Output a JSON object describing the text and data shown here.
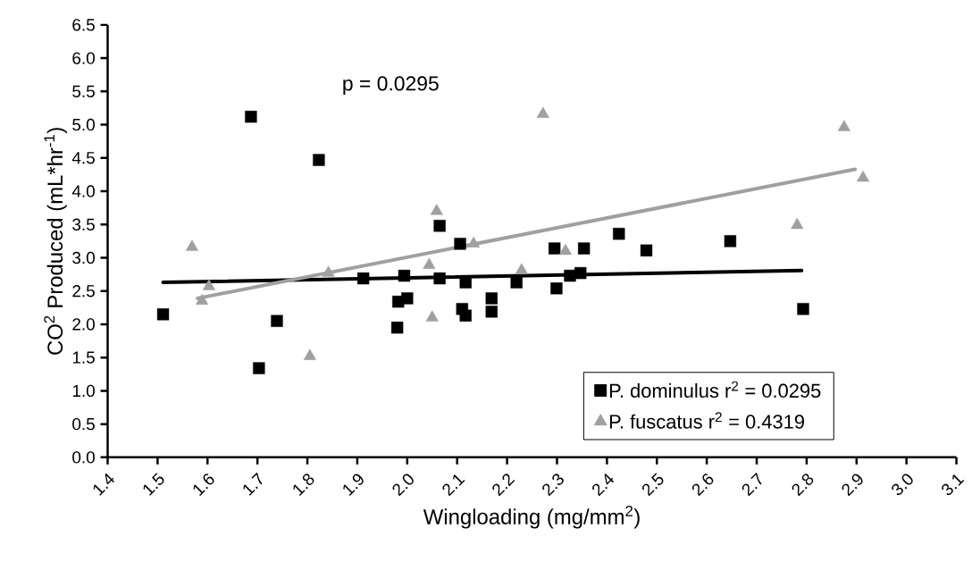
{
  "chart_data": {
    "type": "scatter",
    "xlabel": "Wingloading (mg/mm$^{2}$)",
    "ylabel": "CO$^{2}$ Produced (mL*hr$^{-1}$)",
    "annotations": [
      "p = 0.0295"
    ],
    "xlim": [
      1.4,
      3.1
    ],
    "ylim": [
      0,
      6.5
    ],
    "xticks": [
      {
        "value": 1.4,
        "label": "1.4"
      },
      {
        "value": 1.5,
        "label": "1.5"
      },
      {
        "value": 1.6,
        "label": "1.6"
      },
      {
        "value": 1.7,
        "label": "1.7"
      },
      {
        "value": 1.8,
        "label": "1.8"
      },
      {
        "value": 1.9,
        "label": "1.9"
      },
      {
        "value": 2.0,
        "label": "2.0"
      },
      {
        "value": 2.1,
        "label": "2.1"
      },
      {
        "value": 2.2,
        "label": "2.2"
      },
      {
        "value": 2.3,
        "label": "2.3"
      },
      {
        "value": 2.4,
        "label": "2.4"
      },
      {
        "value": 2.5,
        "label": "2.5"
      },
      {
        "value": 2.6,
        "label": "2.6"
      },
      {
        "value": 2.7,
        "label": "2.7"
      },
      {
        "value": 2.8,
        "label": "2.8"
      },
      {
        "value": 2.9,
        "label": "2.9"
      },
      {
        "value": 3.0,
        "label": "3.0"
      },
      {
        "value": 3.1,
        "label": "3.1"
      }
    ],
    "yticks": [
      {
        "value": 0.0,
        "label": "0.0"
      },
      {
        "value": 0.5,
        "label": "0.5"
      },
      {
        "value": 1.0,
        "label": "1.0"
      },
      {
        "value": 1.5,
        "label": "1.5"
      },
      {
        "value": 2.0,
        "label": "2.0"
      },
      {
        "value": 2.5,
        "label": "2.5"
      },
      {
        "value": 3.0,
        "label": "3.0"
      },
      {
        "value": 3.5,
        "label": "3.5"
      },
      {
        "value": 4.0,
        "label": "4.0"
      },
      {
        "value": 4.5,
        "label": "4.5"
      },
      {
        "value": 5.0,
        "label": "5.0"
      },
      {
        "value": 5.5,
        "label": "5.5"
      },
      {
        "value": 6.0,
        "label": "6.0"
      },
      {
        "value": 6.5,
        "label": "6.5"
      }
    ],
    "legend": "bottom right",
    "series": [
      {
        "name": "P. dominulus r$^{2}$ = 0.0295",
        "marker": "square",
        "color": "#000000",
        "x": [
          1.511,
          1.687,
          1.703,
          1.739,
          1.823,
          1.912,
          1.982,
          2.0,
          1.98,
          1.994,
          2.065,
          2.065,
          2.106,
          2.117,
          2.11,
          2.117,
          2.169,
          2.169,
          2.219,
          2.295,
          2.299,
          2.326,
          2.347,
          2.354,
          2.424,
          2.479,
          2.647,
          2.793
        ],
        "values": [
          2.15,
          5.12,
          1.34,
          2.05,
          4.47,
          2.69,
          2.34,
          2.39,
          1.95,
          2.73,
          3.48,
          2.69,
          3.21,
          2.63,
          2.23,
          2.13,
          2.39,
          2.19,
          2.63,
          3.14,
          2.54,
          2.73,
          2.77,
          3.14,
          3.36,
          3.11,
          3.25,
          2.23
        ]
      },
      {
        "name": "P. fuscatus r$^{2}$ = 0.4319",
        "marker": "triangle",
        "color": "#a0a0a0",
        "x": [
          1.569,
          1.603,
          1.589,
          1.805,
          1.842,
          2.044,
          2.05,
          2.059,
          2.133,
          2.229,
          2.272,
          2.317,
          2.781,
          2.875,
          2.913
        ],
        "values": [
          3.16,
          2.57,
          2.35,
          1.52,
          2.77,
          2.89,
          2.1,
          3.7,
          3.21,
          2.81,
          5.16,
          3.1,
          3.49,
          4.96,
          4.2
        ]
      },
      {
        "type": "line",
        "marker": "none",
        "color": "#000000",
        "x": [
          1.511,
          2.79
        ],
        "values": [
          2.63,
          2.81
        ]
      },
      {
        "type": "line",
        "marker": "none",
        "color": "#a0a0a0",
        "x": [
          1.58,
          2.897
        ],
        "values": [
          2.39,
          4.33
        ]
      }
    ]
  }
}
